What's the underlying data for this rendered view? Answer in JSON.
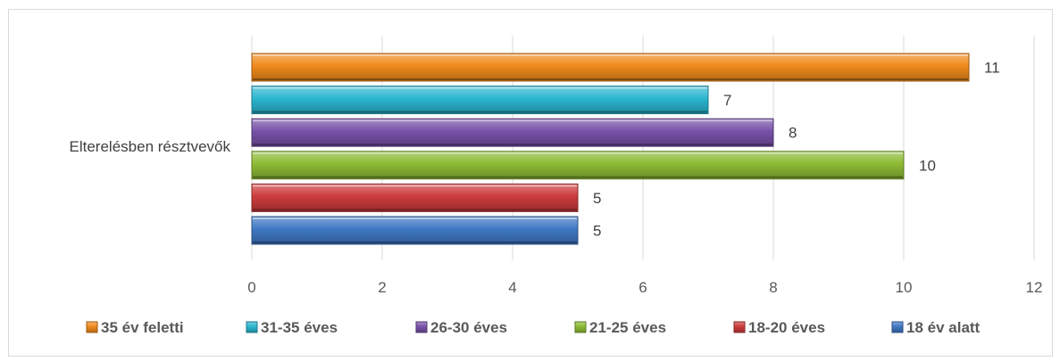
{
  "chart_data": {
    "type": "bar",
    "orientation": "horizontal",
    "categories": [
      "Elterelésben résztvevők"
    ],
    "series": [
      {
        "name": "35 év feletti",
        "values": [
          11
        ],
        "color": "#F08A1C"
      },
      {
        "name": "31-35 éves",
        "values": [
          7
        ],
        "color": "#2BB6CF"
      },
      {
        "name": "26-30 éves",
        "values": [
          8
        ],
        "color": "#7851A8"
      },
      {
        "name": "21-25 éves",
        "values": [
          10
        ],
        "color": "#8DBB35"
      },
      {
        "name": "18-20 éves",
        "values": [
          5
        ],
        "color": "#CC3B3B"
      },
      {
        "name": "18 év alatt",
        "values": [
          5
        ],
        "color": "#3F78C4"
      }
    ],
    "xlim": [
      0,
      12
    ],
    "xticks": [
      "0",
      "2",
      "4",
      "6",
      "8",
      "10",
      "12"
    ],
    "grid": "vertical",
    "legend": "bottom"
  }
}
